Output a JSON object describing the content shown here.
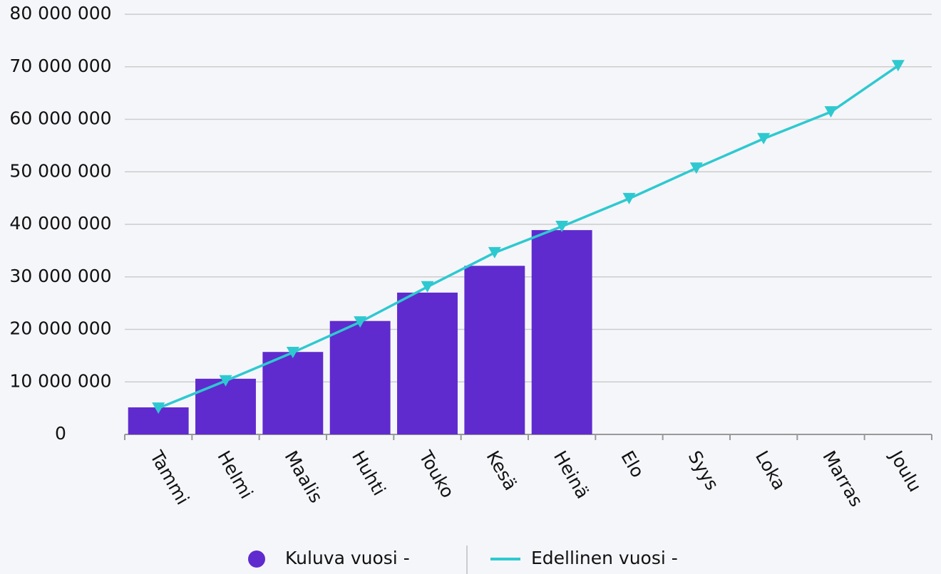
{
  "chart_data": {
    "type": "bar",
    "categories": [
      "Tammi",
      "Helmi",
      "Maalis",
      "Huhti",
      "Touko",
      "Kesä",
      "Heinä",
      "Elo",
      "Syys",
      "Loka",
      "Marras",
      "Joulu"
    ],
    "series": [
      {
        "name": "Kuluva vuosi -",
        "type": "bar",
        "color": "#5f2bce",
        "values": [
          5150000,
          10600000,
          15700000,
          21600000,
          27000000,
          32100000,
          38900000,
          null,
          null,
          null,
          null,
          null
        ]
      },
      {
        "name": "Edellinen vuosi -",
        "type": "line",
        "color": "#2ec9d0",
        "marker": "triangle-down",
        "values": [
          5000000,
          10200000,
          15600000,
          21400000,
          28100000,
          34600000,
          39600000,
          44900000,
          50700000,
          56300000,
          61400000,
          70200000
        ]
      }
    ],
    "ylim": [
      0,
      80000000
    ],
    "yticks": [
      0,
      {
        "value": 10000000,
        "label": "10 000 000"
      },
      {
        "value": 20000000,
        "label": "20 000 000"
      },
      {
        "value": 30000000,
        "label": "30 000 000"
      },
      {
        "value": 40000000,
        "label": "40 000 000"
      },
      {
        "value": 50000000,
        "label": "50 000 000"
      },
      {
        "value": 60000000,
        "label": "60 000 000"
      },
      {
        "value": 70000000,
        "label": "70 000 000"
      },
      {
        "value": 80000000,
        "label": "80 000 000"
      }
    ],
    "grid": true,
    "legend": "bottom"
  }
}
